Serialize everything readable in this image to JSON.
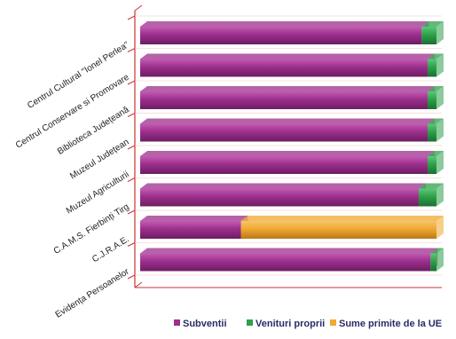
{
  "chart_data": {
    "type": "bar",
    "orientation": "horizontal",
    "stacked": "percent",
    "style": "3d",
    "categories": [
      "Centrul Cultural \"Ionel Perlea\"",
      "Centrul Conservare si Promovare",
      "Biblioteca Județeană",
      "Muzeul Județean",
      "Muzeul Agriculturii",
      "C.A.M.S. Fierbinți Tirg",
      "C.J.R.A.E.",
      "Evidența Persoanelor"
    ],
    "series": [
      {
        "name": "Subventii",
        "color": "#9c2f8c",
        "values": [
          95,
          97,
          97,
          97,
          97,
          94,
          34,
          98
        ]
      },
      {
        "name": "Venituri proprii",
        "color": "#2ea14a",
        "values": [
          5,
          3,
          3,
          3,
          3,
          6,
          0,
          2
        ]
      },
      {
        "name": "Sume primite de la UE",
        "color": "#f0a830",
        "values": [
          0,
          0,
          0,
          0,
          0,
          0,
          66,
          0
        ]
      }
    ],
    "xlim": [
      0,
      100
    ],
    "legend_position": "bottom",
    "grid": true
  }
}
